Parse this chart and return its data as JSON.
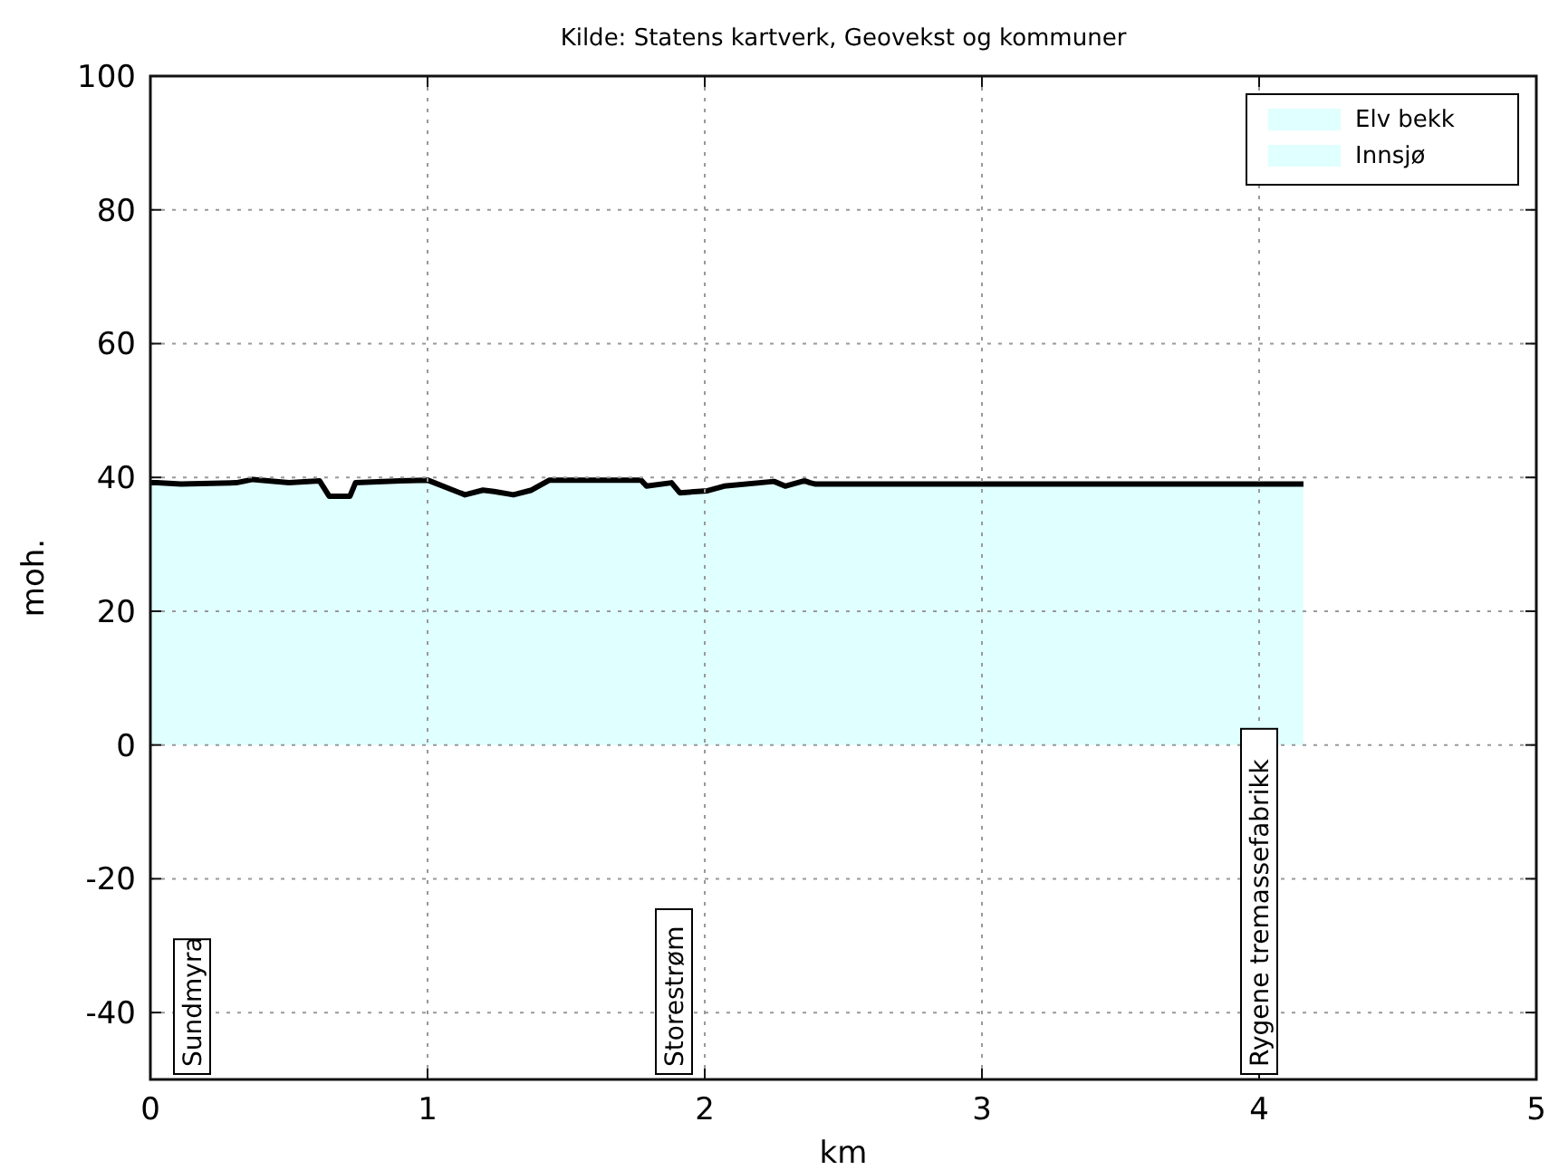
{
  "chart_data": {
    "type": "area",
    "title": "Kilde: Statens kartverk, Geovekst og kommuner",
    "xlabel": "km",
    "ylabel": "moh.",
    "x": [
      0.0,
      0.024,
      0.11,
      0.31,
      0.37,
      0.5,
      0.61,
      0.645,
      0.72,
      0.74,
      0.9,
      1.0,
      1.135,
      1.2,
      1.24,
      1.31,
      1.375,
      1.44,
      1.77,
      1.79,
      1.88,
      1.91,
      2.01,
      2.07,
      2.25,
      2.29,
      2.36,
      2.38,
      2.4,
      4.16
    ],
    "series": [
      {
        "name": "Elv bekk",
        "color": "#e0ffff",
        "values": [
          null,
          null,
          null,
          null,
          null,
          null,
          null,
          null,
          null,
          null,
          null,
          null,
          null,
          null,
          null,
          null,
          null,
          null,
          null,
          null,
          null,
          null,
          null,
          null,
          null,
          null,
          null,
          null,
          null,
          null
        ]
      },
      {
        "name": "Innsjø",
        "color": "#e0ffff",
        "values": [
          39.2,
          39.2,
          39.0,
          39.2,
          39.7,
          39.2,
          39.5,
          37.2,
          37.2,
          39.2,
          39.5,
          39.6,
          37.4,
          38.1,
          37.9,
          37.4,
          38.1,
          39.6,
          39.6,
          38.7,
          39.2,
          37.7,
          38.0,
          38.7,
          39.4,
          38.7,
          39.5,
          39.2,
          39.0,
          39.0
        ]
      }
    ],
    "xlim": [
      0,
      5
    ],
    "xticks": [
      0,
      1,
      2,
      3,
      4,
      5
    ],
    "ylim": [
      -50,
      100
    ],
    "yticks": [
      -40,
      -20,
      0,
      20,
      40,
      60,
      80,
      100
    ],
    "grid": true,
    "legend": "top right",
    "line_style": "solid",
    "annotations": [
      "Sundmyra",
      "Storestrøm",
      "Rygene tremassefabrikk"
    ]
  }
}
